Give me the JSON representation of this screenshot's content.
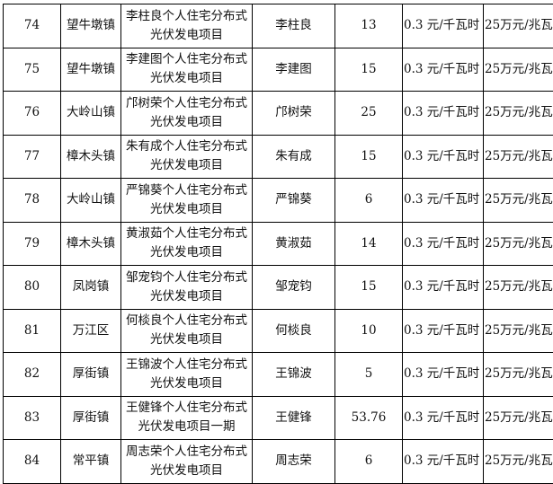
{
  "table": {
    "rows": [
      {
        "no": "74",
        "town": "望牛墩镇",
        "project_l1": "李柱良个人住宅分布式",
        "project_l2": "光伏发电项目",
        "owner": "李柱良",
        "capacity": "13",
        "price": "0.3 元/千瓦时",
        "subsidy": "25万元/兆瓦"
      },
      {
        "no": "75",
        "town": "望牛墩镇",
        "project_l1": "李建图个人住宅分布式",
        "project_l2": "光伏发电项目",
        "owner": "李建图",
        "capacity": "15",
        "price": "0.3 元/千瓦时",
        "subsidy": "25万元/兆瓦"
      },
      {
        "no": "76",
        "town": "大岭山镇",
        "project_l1": "邝树荣个人住宅分布式",
        "project_l2": "光伏发电项目",
        "owner": "邝树荣",
        "capacity": "25",
        "price": "0.3 元/千瓦时",
        "subsidy": "25万元/兆瓦"
      },
      {
        "no": "77",
        "town": "樟木头镇",
        "project_l1": "朱有成个人住宅分布式",
        "project_l2": "光伏发电项目",
        "owner": "朱有成",
        "capacity": "15",
        "price": "0.3 元/千瓦时",
        "subsidy": "25万元/兆瓦"
      },
      {
        "no": "78",
        "town": "大岭山镇",
        "project_l1": "严锦葵个人住宅分布式",
        "project_l2": "光伏发电项目",
        "owner": "严锦葵",
        "capacity": "6",
        "price": "0.3 元/千瓦时",
        "subsidy": "25万元/兆瓦"
      },
      {
        "no": "79",
        "town": "樟木头镇",
        "project_l1": "黄淑茹个人住宅分布式",
        "project_l2": "光伏发电项目",
        "owner": "黄淑茹",
        "capacity": "14",
        "price": "0.3 元/千瓦时",
        "subsidy": "25万元/兆瓦"
      },
      {
        "no": "80",
        "town": "凤岗镇",
        "project_l1": "邹宠钧个人住宅分布式",
        "project_l2": "光伏发电项目",
        "owner": "邹宠钧",
        "capacity": "15",
        "price": "0.3 元/千瓦时",
        "subsidy": "25万元/兆瓦"
      },
      {
        "no": "81",
        "town": "万江区",
        "project_l1": "何棪良个人住宅分布式",
        "project_l2": "光伏发电项目",
        "owner": "何棪良",
        "capacity": "10",
        "price": "0.3 元/千瓦时",
        "subsidy": "25万元/兆瓦"
      },
      {
        "no": "82",
        "town": "厚街镇",
        "project_l1": "王锦波个人住宅分布式",
        "project_l2": "光伏发电项目",
        "owner": "王锦波",
        "capacity": "5",
        "price": "0.3 元/千瓦时",
        "subsidy": "25万元/兆瓦"
      },
      {
        "no": "83",
        "town": "厚街镇",
        "project_l1": "王健锋个人住宅分布式",
        "project_l2": "光伏发电项目一期",
        "owner": "王健锋",
        "capacity": "53.76",
        "price": "0.3 元/千瓦时",
        "subsidy": "25万元/兆瓦"
      },
      {
        "no": "84",
        "town": "常平镇",
        "project_l1": "周志荣个人住宅分布式",
        "project_l2": "光伏发电项目",
        "owner": "周志荣",
        "capacity": "6",
        "price": "0.3 元/千瓦时",
        "subsidy": "25万元/兆瓦"
      }
    ]
  }
}
